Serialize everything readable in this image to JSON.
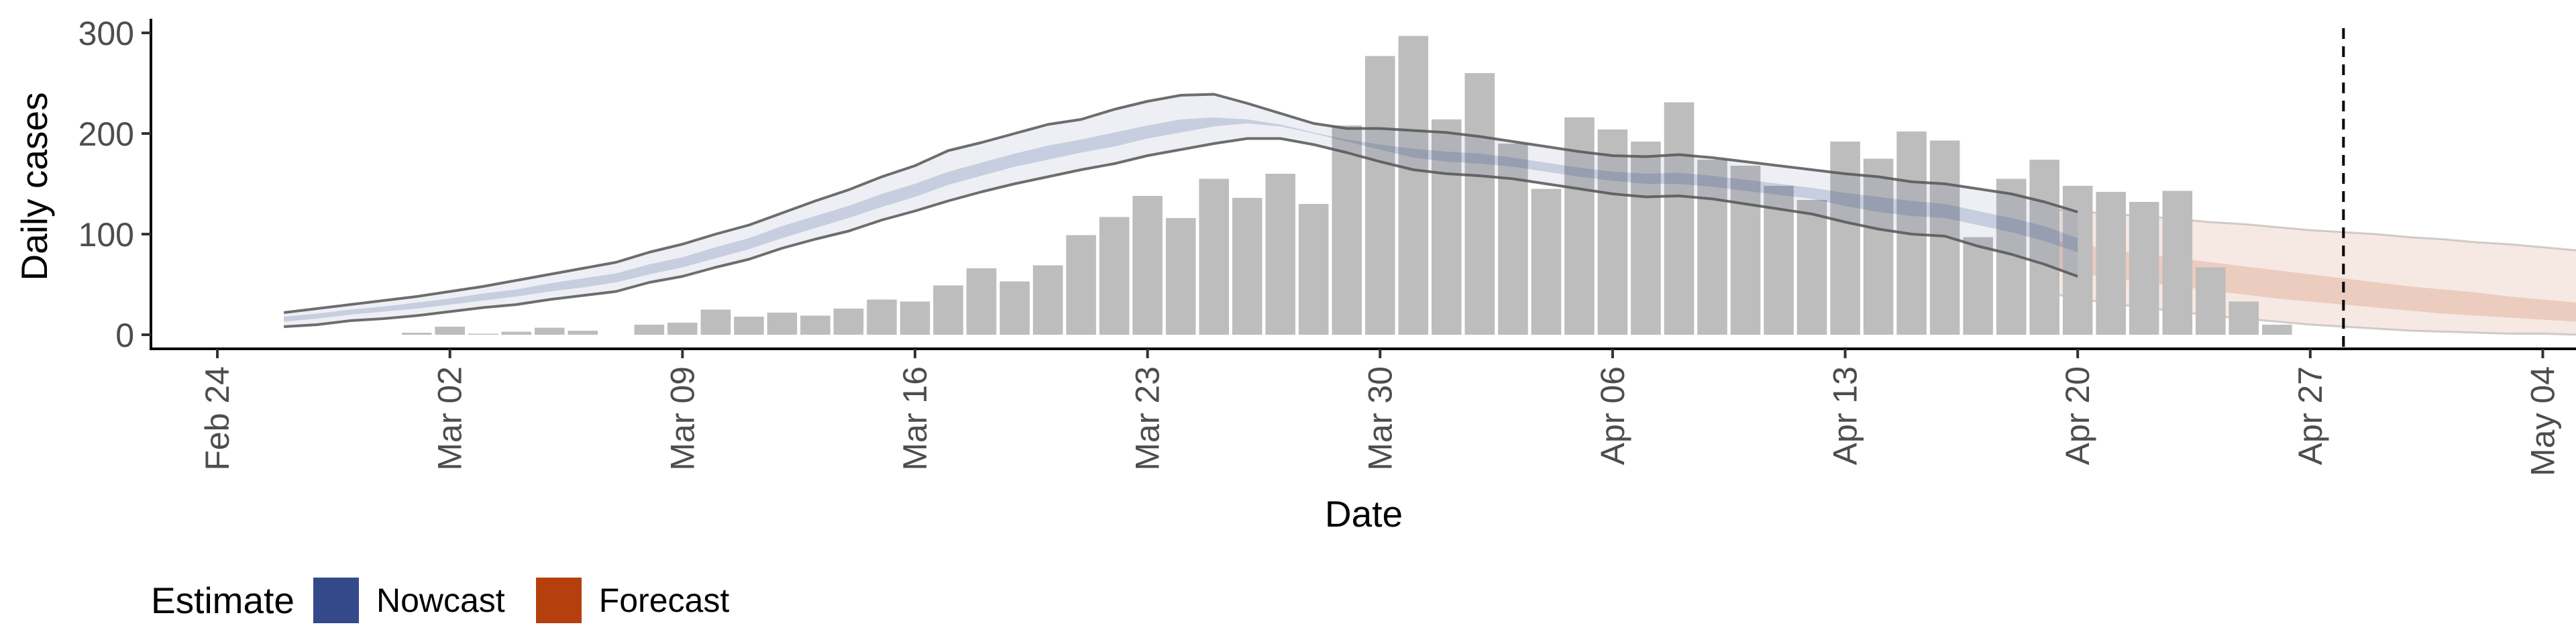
{
  "chart_data": {
    "type": "bar",
    "xlabel": "Date",
    "ylabel": "Daily cases",
    "ylim": [
      0,
      300
    ],
    "yticks": [
      0,
      100,
      200,
      300
    ],
    "xlim": [
      "2020-02-22",
      "2020-05-05"
    ],
    "xticks": [
      "2020-02-24",
      "2020-03-02",
      "2020-03-09",
      "2020-03-16",
      "2020-03-23",
      "2020-03-30",
      "2020-04-06",
      "2020-04-13",
      "2020-04-20",
      "2020-04-27",
      "2020-05-04"
    ],
    "xtick_labels": [
      "Feb 24",
      "Mar 02",
      "Mar 09",
      "Mar 16",
      "Mar 23",
      "Mar 30",
      "Apr 06",
      "Apr 13",
      "Apr 20",
      "Apr 27",
      "May 04"
    ],
    "cases": {
      "start_date": "2020-02-26",
      "values": [
        0,
        0,
        0,
        0,
        2,
        8,
        1,
        3,
        7,
        4,
        0,
        10,
        12,
        25,
        18,
        22,
        19,
        26,
        35,
        33,
        49,
        66,
        53,
        69,
        99,
        117,
        138,
        116,
        155,
        136,
        160,
        130,
        208,
        277,
        297,
        214,
        260,
        190,
        145,
        216,
        204,
        192,
        231,
        174,
        168,
        148,
        134,
        192,
        175,
        202,
        193,
        97,
        155,
        174,
        148,
        142,
        132,
        143,
        67,
        33,
        10
      ]
    },
    "estimate_date": "2020-04-28",
    "nowcast": {
      "start_date": "2020-02-26",
      "lower90": [
        8,
        10,
        14,
        16,
        19,
        23,
        27,
        30,
        35,
        39,
        43,
        52,
        58,
        67,
        75,
        86,
        95,
        103,
        114,
        123,
        133,
        142,
        150,
        157,
        164,
        170,
        178,
        184,
        190,
        195,
        195,
        189,
        181,
        172,
        164,
        160,
        158,
        155,
        150,
        145,
        140,
        137,
        138,
        135,
        130,
        125,
        120,
        112,
        105,
        100,
        98,
        88,
        80,
        70,
        58
      ],
      "upper90": [
        22,
        26,
        30,
        34,
        38,
        43,
        48,
        54,
        60,
        66,
        72,
        82,
        90,
        100,
        109,
        121,
        133,
        144,
        157,
        168,
        183,
        191,
        200,
        209,
        214,
        224,
        232,
        238,
        239,
        230,
        220,
        210,
        205,
        205,
        203,
        201,
        197,
        192,
        187,
        182,
        178,
        177,
        179,
        176,
        172,
        168,
        164,
        160,
        157,
        152,
        150,
        145,
        140,
        132,
        122
      ],
      "lower50": [
        13,
        16,
        20,
        23,
        26,
        30,
        34,
        38,
        43,
        47,
        52,
        60,
        67,
        76,
        85,
        96,
        106,
        116,
        127,
        137,
        149,
        158,
        167,
        174,
        181,
        187,
        195,
        201,
        207,
        210,
        207,
        200,
        192,
        184,
        176,
        172,
        170,
        167,
        162,
        157,
        153,
        150,
        150,
        147,
        143,
        139,
        135,
        128,
        122,
        118,
        116,
        109,
        102,
        93,
        82
      ],
      "upper50": [
        18,
        21,
        25,
        28,
        32,
        36,
        41,
        45,
        51,
        56,
        61,
        70,
        77,
        87,
        96,
        108,
        118,
        128,
        140,
        150,
        162,
        171,
        180,
        188,
        194,
        201,
        208,
        214,
        216,
        214,
        209,
        201,
        194,
        189,
        185,
        182,
        180,
        176,
        171,
        166,
        162,
        160,
        161,
        158,
        154,
        150,
        146,
        141,
        137,
        133,
        130,
        123,
        116,
        108,
        96
      ]
    },
    "forecast": {
      "start_date": "2020-04-19",
      "lower90": [
        42,
        36,
        31,
        27,
        23,
        19,
        16,
        13,
        10,
        8,
        6,
        4,
        3,
        2,
        1,
        1,
        0,
        0,
        0
      ],
      "upper90": [
        125,
        123,
        120,
        118,
        115,
        112,
        110,
        107,
        104,
        102,
        100,
        97,
        95,
        92,
        90,
        87,
        84,
        81,
        78
      ],
      "lower50": [
        68,
        62,
        56,
        52,
        48,
        44,
        40,
        36,
        33,
        30,
        27,
        24,
        21,
        19,
        17,
        15,
        13,
        11,
        10
      ],
      "upper50": [
        95,
        90,
        85,
        80,
        76,
        72,
        68,
        64,
        60,
        56,
        52,
        48,
        45,
        42,
        38,
        35,
        32,
        29,
        26
      ]
    },
    "legend": {
      "title": "Estimate",
      "position": "bottom-left",
      "entries": [
        {
          "name": "Nowcast",
          "color": "#33498a"
        },
        {
          "name": "Forecast",
          "color": "#b5400d"
        }
      ]
    },
    "colors": {
      "bars": "#bdbdbd",
      "nowcast": "#33498a",
      "forecast": "#b5400d",
      "lines": "#555555"
    },
    "grid": false
  }
}
